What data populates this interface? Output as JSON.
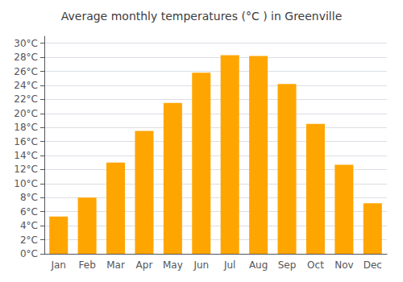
{
  "chart_data": {
    "type": "bar",
    "title": "Average monthly temperatures (°C ) in Greenville",
    "categories": [
      "Jan",
      "Feb",
      "Mar",
      "Apr",
      "May",
      "Jun",
      "Jul",
      "Aug",
      "Sep",
      "Oct",
      "Nov",
      "Dec"
    ],
    "values": [
      5.3,
      8.0,
      13.0,
      17.5,
      21.5,
      25.8,
      28.3,
      28.2,
      24.2,
      18.5,
      12.7,
      7.2
    ],
    "color": "#FFA500",
    "ylim": [
      0,
      31
    ],
    "yticks": [
      {
        "value": 0,
        "label": "0°C"
      },
      {
        "value": 2,
        "label": "2°C"
      },
      {
        "value": 4,
        "label": "4°C"
      },
      {
        "value": 6,
        "label": "6°C"
      },
      {
        "value": 8,
        "label": "8°C"
      },
      {
        "value": 10,
        "label": "10°C"
      },
      {
        "value": 12,
        "label": "12°C"
      },
      {
        "value": 14,
        "label": "14°C"
      },
      {
        "value": 16,
        "label": "16°C"
      },
      {
        "value": 18,
        "label": "18°C"
      },
      {
        "value": 20,
        "label": "20°C"
      },
      {
        "value": 22,
        "label": "22°C"
      },
      {
        "value": 24,
        "label": "24°C"
      },
      {
        "value": 26,
        "label": "26°C"
      },
      {
        "value": 28,
        "label": "28°C"
      },
      {
        "value": 30,
        "label": "30°C"
      }
    ],
    "grid": true
  }
}
